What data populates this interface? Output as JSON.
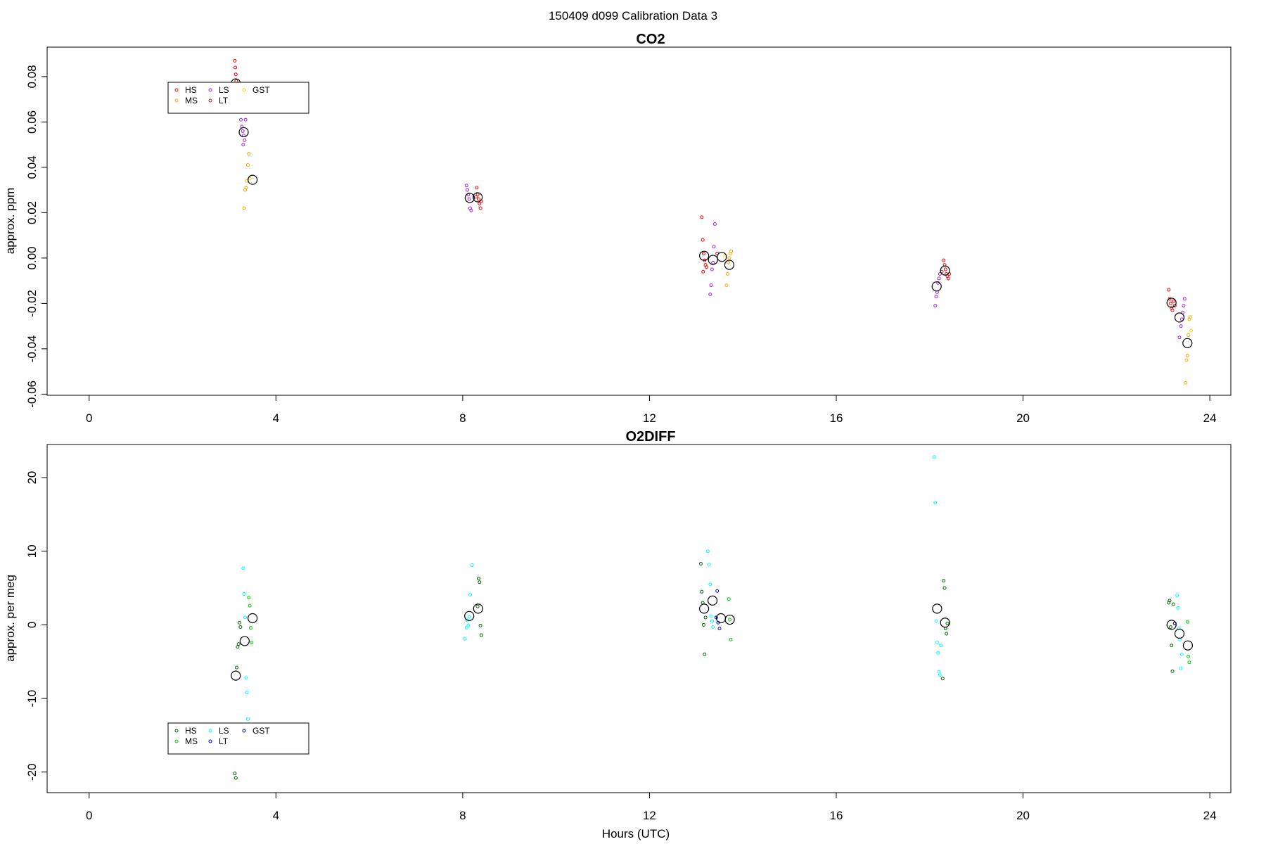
{
  "page_title": "150409   d099   Calibration Data 3",
  "chart_data": [
    {
      "type": "scatter",
      "title": "CO2",
      "xlabel": "",
      "ylabel": "approx. ppm",
      "xlim": [
        -0.9,
        24.45
      ],
      "ylim": [
        -0.0605,
        0.093
      ],
      "xticks": [
        0,
        4,
        8,
        12,
        16,
        20,
        24
      ],
      "yticks": [
        -0.06,
        -0.04,
        -0.02,
        0.0,
        0.02,
        0.04,
        0.06,
        0.08
      ],
      "ytick_labels": [
        "-0.06",
        "-0.04",
        "-0.02",
        "0.00",
        "0.02",
        "0.04",
        "0.06",
        "0.08"
      ],
      "legend": {
        "position": "top-left",
        "entries": [
          {
            "name": "HS",
            "color": "#ff0000"
          },
          {
            "name": "MS",
            "color": "#ffa500"
          },
          {
            "name": "LS",
            "color": "#a020f0"
          },
          {
            "name": "LT",
            "color": "#b22222"
          },
          {
            "name": "GST",
            "color": "#ffd700"
          }
        ]
      },
      "series": [
        {
          "name": "HS",
          "color": "#ff0000",
          "points": [
            [
              3.12,
              0.087
            ],
            [
              3.13,
              0.084
            ],
            [
              3.14,
              0.081
            ],
            [
              3.15,
              0.078
            ],
            [
              3.16,
              0.076
            ],
            [
              3.18,
              0.075
            ],
            [
              8.3,
              0.031
            ],
            [
              8.32,
              0.028
            ],
            [
              8.34,
              0.026
            ],
            [
              8.36,
              0.024
            ],
            [
              8.38,
              0.022
            ],
            [
              8.4,
              0.025
            ],
            [
              13.12,
              0.018
            ],
            [
              13.14,
              0.008
            ],
            [
              13.16,
              0.002
            ],
            [
              13.18,
              -0.001
            ],
            [
              13.2,
              -0.003
            ],
            [
              13.22,
              -0.004
            ],
            [
              13.15,
              -0.006
            ],
            [
              18.3,
              -0.001
            ],
            [
              18.32,
              -0.003
            ],
            [
              18.34,
              -0.005
            ],
            [
              18.36,
              -0.007
            ],
            [
              18.38,
              -0.008
            ],
            [
              18.4,
              -0.009
            ],
            [
              18.42,
              -0.007
            ],
            [
              23.12,
              -0.014
            ],
            [
              23.14,
              -0.018
            ],
            [
              23.16,
              -0.02
            ],
            [
              23.18,
              -0.022
            ],
            [
              23.2,
              -0.023
            ],
            [
              23.22,
              -0.019
            ]
          ]
        },
        {
          "name": "MS",
          "color": "#ffa500",
          "points": [
            [
              3.32,
              0.022
            ],
            [
              3.34,
              0.03
            ],
            [
              3.36,
              0.031
            ],
            [
              3.38,
              0.034
            ],
            [
              3.4,
              0.041
            ],
            [
              3.42,
              0.046
            ],
            [
              13.65,
              -0.012
            ],
            [
              13.67,
              -0.007
            ],
            [
              13.69,
              -0.002
            ],
            [
              13.71,
              0.0
            ],
            [
              13.73,
              0.002
            ],
            [
              13.75,
              0.003
            ],
            [
              23.48,
              -0.055
            ],
            [
              23.5,
              -0.045
            ],
            [
              23.52,
              -0.043
            ],
            [
              23.54,
              -0.034
            ],
            [
              23.56,
              -0.027
            ],
            [
              23.58,
              -0.026
            ]
          ]
        },
        {
          "name": "LS",
          "color": "#a020f0",
          "points": [
            [
              3.25,
              0.061
            ],
            [
              3.27,
              0.058
            ],
            [
              3.29,
              0.056
            ],
            [
              3.31,
              0.054
            ],
            [
              3.33,
              0.052
            ],
            [
              3.35,
              0.061
            ],
            [
              3.3,
              0.05
            ],
            [
              8.08,
              0.032
            ],
            [
              8.1,
              0.03
            ],
            [
              8.12,
              0.028
            ],
            [
              8.14,
              0.026
            ],
            [
              8.16,
              0.022
            ],
            [
              8.18,
              0.021
            ],
            [
              13.3,
              -0.016
            ],
            [
              13.32,
              -0.012
            ],
            [
              13.34,
              -0.005
            ],
            [
              13.36,
              -0.002
            ],
            [
              13.38,
              0.005
            ],
            [
              13.4,
              0.015
            ],
            [
              18.12,
              -0.021
            ],
            [
              18.14,
              -0.017
            ],
            [
              18.16,
              -0.015
            ],
            [
              18.18,
              -0.011
            ],
            [
              18.2,
              -0.009
            ],
            [
              18.22,
              -0.007
            ],
            [
              23.35,
              -0.035
            ],
            [
              23.38,
              -0.03
            ],
            [
              23.4,
              -0.027
            ],
            [
              23.42,
              -0.024
            ],
            [
              23.44,
              -0.021
            ],
            [
              23.46,
              -0.018
            ]
          ]
        },
        {
          "name": "LT",
          "color": "#b22222",
          "points": [
            [
              3.22,
              0.076
            ],
            [
              8.28,
              0.027
            ],
            [
              13.45,
              0.002
            ],
            [
              18.26,
              -0.006
            ],
            [
              23.25,
              -0.021
            ]
          ]
        },
        {
          "name": "GST",
          "color": "#ffd700",
          "points": [
            [
              3.44,
              0.035
            ],
            [
              13.62,
              0.001
            ],
            [
              23.6,
              -0.032
            ]
          ]
        },
        {
          "name": "mean",
          "color": "#000000",
          "marker": "large",
          "points": [
            [
              3.14,
              0.077
            ],
            [
              3.31,
              0.0555
            ],
            [
              3.5,
              0.0345
            ],
            [
              8.15,
              0.0265
            ],
            [
              8.32,
              0.0268
            ],
            [
              13.17,
              0.001
            ],
            [
              13.36,
              -0.0008
            ],
            [
              13.55,
              0.0005
            ],
            [
              13.71,
              -0.003
            ],
            [
              18.15,
              -0.0125
            ],
            [
              18.33,
              -0.0055
            ],
            [
              23.18,
              -0.0197
            ],
            [
              23.35,
              -0.0262
            ],
            [
              23.52,
              -0.0375
            ]
          ]
        }
      ]
    },
    {
      "type": "scatter",
      "title": "O2DIFF",
      "xlabel": "Hours (UTC)",
      "ylabel": "approx. per meg",
      "xlim": [
        -0.9,
        24.45
      ],
      "ylim": [
        -22.8,
        24.5
      ],
      "xticks": [
        0,
        4,
        8,
        12,
        16,
        20,
        24
      ],
      "yticks": [
        -20,
        -10,
        0,
        10,
        20
      ],
      "ytick_labels": [
        "-20",
        "-10",
        "0",
        "10",
        "20"
      ],
      "legend": {
        "position": "bottom-left",
        "entries": [
          {
            "name": "HS",
            "color": "#006400"
          },
          {
            "name": "MS",
            "color": "#00cd00"
          },
          {
            "name": "LS",
            "color": "#00ffff"
          },
          {
            "name": "LT",
            "color": "#0000ff"
          },
          {
            "name": "GST",
            "color": "#00008b"
          }
        ]
      },
      "series": [
        {
          "name": "HS",
          "color": "#006400",
          "points": [
            [
              3.12,
              -20.2
            ],
            [
              3.14,
              -20.8
            ],
            [
              3.16,
              -5.8
            ],
            [
              3.18,
              -3.0
            ],
            [
              3.2,
              -2.6
            ],
            [
              3.22,
              0.3
            ],
            [
              3.24,
              -0.3
            ],
            [
              8.32,
              2.5
            ],
            [
              8.34,
              6.3
            ],
            [
              8.36,
              5.8
            ],
            [
              8.38,
              -0.1
            ],
            [
              8.4,
              -1.4
            ],
            [
              13.1,
              8.3
            ],
            [
              13.12,
              4.5
            ],
            [
              13.14,
              3.0
            ],
            [
              13.16,
              0.0
            ],
            [
              13.18,
              -4.0
            ],
            [
              13.2,
              1.0
            ],
            [
              18.3,
              6.0
            ],
            [
              18.32,
              5.0
            ],
            [
              18.34,
              -0.5
            ],
            [
              18.36,
              -1.2
            ],
            [
              18.28,
              -7.3
            ],
            [
              18.38,
              0.2
            ],
            [
              23.12,
              3.0
            ],
            [
              23.14,
              3.3
            ],
            [
              23.16,
              -0.3
            ],
            [
              23.18,
              -2.8
            ],
            [
              23.2,
              -6.3
            ],
            [
              23.22,
              2.8
            ]
          ]
        },
        {
          "name": "MS",
          "color": "#00cd00",
          "points": [
            [
              3.42,
              3.7
            ],
            [
              3.44,
              2.6
            ],
            [
              3.46,
              -0.4
            ],
            [
              3.48,
              -2.4
            ],
            [
              13.7,
              3.5
            ],
            [
              13.72,
              0.7
            ],
            [
              13.74,
              -2.0
            ],
            [
              23.52,
              0.4
            ],
            [
              23.54,
              -4.3
            ],
            [
              23.56,
              -5.1
            ]
          ]
        },
        {
          "name": "LS",
          "color": "#00ffff",
          "points": [
            [
              3.3,
              7.7
            ],
            [
              3.32,
              4.2
            ],
            [
              3.34,
              1.0
            ],
            [
              3.36,
              -7.2
            ],
            [
              3.38,
              -9.2
            ],
            [
              3.4,
              -12.8
            ],
            [
              8.05,
              -1.9
            ],
            [
              8.08,
              -0.4
            ],
            [
              8.1,
              0.6
            ],
            [
              8.12,
              -0.1
            ],
            [
              8.14,
              1.1
            ],
            [
              8.16,
              4.1
            ],
            [
              8.2,
              8.1
            ],
            [
              13.25,
              10.0
            ],
            [
              13.28,
              8.2
            ],
            [
              13.3,
              5.5
            ],
            [
              13.32,
              1.2
            ],
            [
              13.34,
              0.5
            ],
            [
              13.36,
              -0.3
            ],
            [
              18.1,
              22.8
            ],
            [
              18.12,
              16.6
            ],
            [
              18.14,
              0.5
            ],
            [
              18.16,
              -2.4
            ],
            [
              18.18,
              -3.8
            ],
            [
              18.2,
              -6.4
            ],
            [
              18.22,
              -6.8
            ],
            [
              18.24,
              -2.8
            ],
            [
              23.3,
              4.0
            ],
            [
              23.32,
              2.3
            ],
            [
              23.34,
              -0.5
            ],
            [
              23.36,
              -2.0
            ],
            [
              23.38,
              -5.9
            ],
            [
              23.4,
              -4.0
            ]
          ]
        },
        {
          "name": "LT",
          "color": "#0000ff",
          "points": [
            [
              13.45,
              4.6
            ],
            [
              13.47,
              0.3
            ],
            [
              13.5,
              -0.5
            ]
          ]
        },
        {
          "name": "GST",
          "color": "#00008b",
          "points": [
            [
              13.43,
              1.0
            ],
            [
              23.25,
              0.2
            ]
          ]
        },
        {
          "name": "mean",
          "color": "#000000",
          "marker": "large",
          "points": [
            [
              3.14,
              -6.9
            ],
            [
              3.33,
              -2.2
            ],
            [
              3.5,
              0.9
            ],
            [
              8.14,
              1.2
            ],
            [
              8.33,
              2.2
            ],
            [
              13.17,
              2.2
            ],
            [
              13.35,
              3.3
            ],
            [
              13.53,
              0.9
            ],
            [
              13.72,
              0.7
            ],
            [
              18.16,
              2.2
            ],
            [
              18.33,
              0.3
            ],
            [
              23.18,
              0.0
            ],
            [
              23.35,
              -1.2
            ],
            [
              23.53,
              -2.8
            ]
          ]
        }
      ]
    }
  ]
}
